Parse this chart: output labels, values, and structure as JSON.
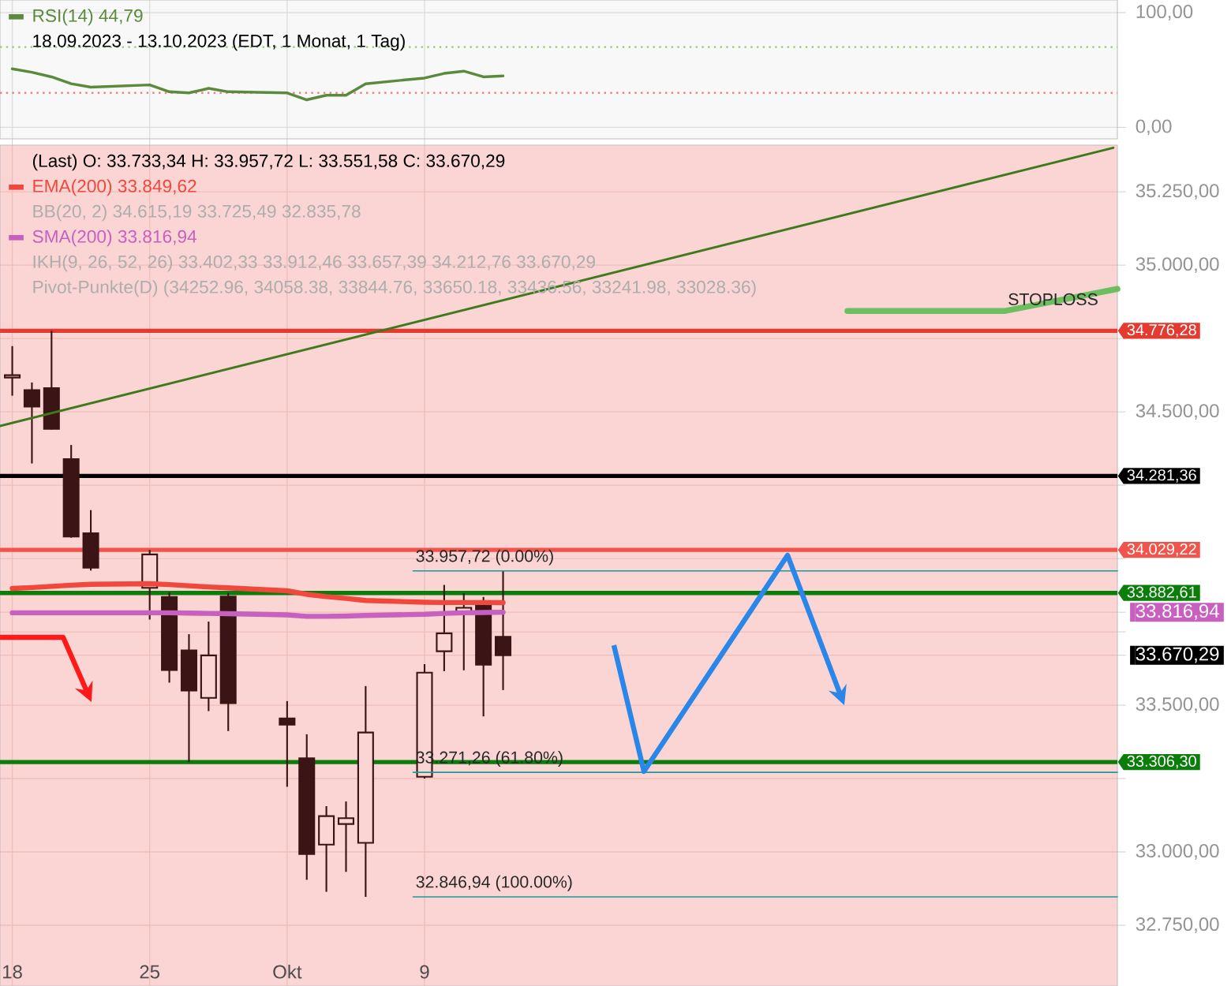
{
  "chart_data": [
    {
      "type": "line",
      "x": [
        "2023-09-18",
        "2023-09-19",
        "2023-09-20",
        "2023-09-21",
        "2023-09-22",
        "2023-09-25",
        "2023-09-26",
        "2023-09-27",
        "2023-09-28",
        "2023-09-29",
        "2023-10-02",
        "2023-10-03",
        "2023-10-04",
        "2023-10-05",
        "2023-10-06",
        "2023-10-09",
        "2023-10-10",
        "2023-10-11",
        "2023-10-12",
        "2023-10-13"
      ],
      "series": [
        {
          "name": "RSI(14) 44,79",
          "color": "#5a8a3c",
          "values": [
            51,
            48,
            44,
            38,
            35,
            37,
            31,
            30,
            34,
            31,
            30,
            24,
            28,
            28,
            38,
            43,
            47,
            49,
            44,
            44.79
          ]
        }
      ],
      "xlim": [
        "2023-09-17T09:00",
        "2023-11-13T07:00"
      ],
      "ylim": [
        -10,
        111
      ],
      "xticks": [
        {
          "value": "2023-09-18",
          "label": null
        },
        {
          "value": "2023-09-25",
          "label": null
        },
        {
          "value": "2023-10-02",
          "label": null
        },
        {
          "value": "2023-10-09",
          "label": null
        }
      ],
      "yticks": [
        {
          "value": 0,
          "label": "0,00"
        },
        {
          "value": 100,
          "label": "100,00"
        }
      ],
      "ref_lines": [
        {
          "axis": "y",
          "value": 70,
          "color": "#8fd16f",
          "line_style": "dotted"
        },
        {
          "axis": "y",
          "value": 30,
          "color": "#f08080",
          "line_style": "dotted"
        }
      ],
      "annotations": [
        "18.09.2023 - 13.10.2023 (EDT, 1 Monat, 1 Tag)"
      ],
      "grid": true,
      "legend": "top left",
      "tick_labels": "y"
    },
    {
      "type": "candlestick",
      "x": [
        "2023-09-18",
        "2023-09-19",
        "2023-09-20",
        "2023-09-21",
        "2023-09-22",
        "2023-09-25",
        "2023-09-26",
        "2023-09-27",
        "2023-09-28",
        "2023-09-29",
        "2023-10-02",
        "2023-10-03",
        "2023-10-04",
        "2023-10-05",
        "2023-10-06",
        "2023-10-09",
        "2023-10-10",
        "2023-10-11",
        "2023-10-12",
        "2023-10-13"
      ],
      "ohlc": [
        [
          34617,
          34724,
          34555,
          34625
        ],
        [
          34574,
          34600,
          34324,
          34518
        ],
        [
          34581,
          34776,
          34440,
          34442
        ],
        [
          34339,
          34387,
          34071,
          34075
        ],
        [
          34086,
          34165,
          33959,
          33969
        ],
        [
          33900,
          34029,
          33792,
          34014
        ],
        [
          33869,
          33885,
          33577,
          33620
        ],
        [
          33687,
          33742,
          33306,
          33550
        ],
        [
          33525,
          33785,
          33480,
          33670
        ],
        [
          33870,
          33883,
          33412,
          33507
        ],
        [
          33455,
          33514,
          33222,
          33434
        ],
        [
          33319,
          33401,
          32905,
          32993
        ],
        [
          33025,
          33156,
          32864,
          33122
        ],
        [
          33095,
          33172,
          32932,
          33115
        ],
        [
          33031,
          33565,
          32847,
          33407
        ],
        [
          33256,
          33640,
          33250,
          33611
        ],
        [
          33684,
          33910,
          33616,
          33745
        ],
        [
          33818,
          33882,
          33619,
          33832
        ],
        [
          33847,
          33869,
          33462,
          33638
        ],
        [
          33733.34,
          33957.72,
          33551.58,
          33670.29
        ]
      ],
      "series": [
        {
          "name": "EMA(200) 33.849,62",
          "type": "line",
          "color": "#f0483c",
          "values": [
            33898,
            33901,
            33905,
            33909,
            33912,
            33914,
            33911,
            33907,
            33903,
            33900,
            33890,
            33878,
            33870,
            33864,
            33857,
            33851,
            33850,
            33850,
            33850,
            33849.62
          ]
        },
        {
          "name": "SMA(200) 33.816,94",
          "type": "line",
          "color": "#c860c0",
          "values": [
            33815,
            33815,
            33815,
            33815,
            33815,
            33815,
            33815,
            33814,
            33813,
            33812,
            33808,
            33803,
            33803,
            33804,
            33806,
            33810,
            33813,
            33815,
            33816,
            33816.94
          ]
        },
        {
          "type": "line",
          "color": "#3d7a1e",
          "x": [
            "2023-09-17T09:00",
            "2023-11-13T02:00"
          ],
          "values": [
            34452,
            35400
          ]
        },
        {
          "type": "line",
          "color": "#6cbf60",
          "x": [
            "2023-10-30T13:00",
            "2023-11-07T14:00",
            "2023-11-13T07:00"
          ],
          "values": [
            34844,
            34844,
            34919
          ]
        },
        {
          "type": "line",
          "color": "#1a9a9a",
          "x": [
            "2023-10-08T10:00",
            "2023-11-13T07:00"
          ],
          "values": [
            33957.72,
            33957.72
          ]
        },
        {
          "type": "line",
          "color": "#1a9a9a",
          "x": [
            "2023-10-08T10:00",
            "2023-11-13T07:00"
          ],
          "values": [
            33271.26,
            33271.26
          ]
        },
        {
          "type": "line",
          "color": "#1a9a9a",
          "x": [
            "2023-10-08T10:00",
            "2023-11-13T07:00"
          ],
          "values": [
            32846.94,
            32846.94
          ]
        }
      ],
      "xlim": [
        "2023-09-17T09:00",
        "2023-11-13T07:00"
      ],
      "ylim": [
        32543,
        35409
      ],
      "xticks": [
        {
          "value": "2023-09-18",
          "label": "18"
        },
        {
          "value": "2023-09-25",
          "label": "25"
        },
        {
          "value": "2023-10-02",
          "label": "Okt"
        },
        {
          "value": "2023-10-09",
          "label": "9"
        }
      ],
      "yticks": [
        {
          "value": 32750,
          "label": "32.750,00"
        },
        {
          "value": 33000,
          "label": "33.000,00"
        },
        {
          "value": 33250,
          "label": null
        },
        {
          "value": 33500,
          "label": "33.500,00"
        },
        {
          "value": 33670.29,
          "label": "33.670,29"
        },
        {
          "value": 33750,
          "label": null
        },
        {
          "value": 33816.94,
          "label": "33.816,94"
        },
        {
          "value": 34000,
          "label": null
        },
        {
          "value": 34250,
          "label": null
        },
        {
          "value": 34500,
          "label": "34.500,00"
        },
        {
          "value": 34750,
          "label": null
        },
        {
          "value": 35000,
          "label": "35.000,00"
        },
        {
          "value": 35250,
          "label": "35.250,00"
        }
      ],
      "ref_lines": [
        {
          "axis": "y",
          "value": 34776.28,
          "label": "34.776,28",
          "color": "#e53a2f"
        },
        {
          "axis": "y",
          "value": 34281.36,
          "label": "34.281,36",
          "color": "#000000"
        },
        {
          "axis": "y",
          "value": 34029.22,
          "label": "34.029,22",
          "color": "#f0544a"
        },
        {
          "axis": "y",
          "value": 33882.61,
          "label": "33.882,61",
          "color": "#0b7d0b"
        },
        {
          "axis": "y",
          "value": 33306.3,
          "label": "33.306,30",
          "color": "#0b7d0b"
        }
      ],
      "annotations": [
        "(Last) O: 33.733,34 H: 33.957,72 L: 33.551,58 C: 33.670,29",
        "BB(20, 2) 34.615,19 33.725,49 32.835,78",
        "IKH(9, 26, 52, 26) 33.402,33 33.912,46 33.657,39 34.212,76 33.670,29",
        "Pivot-Punkte(D) (34252.96, 34058.38, 33844.76, 33650.18, 33436.56, 33241.98, 33028.36)",
        {
          "text": "33.957,72 (0.00%)",
          "x": "2023-10-08T10:00",
          "y": 33957.72
        },
        {
          "text": "33.271,26 (61.80%)",
          "x": "2023-10-08T10:00",
          "y": 33271.26
        },
        {
          "text": "32.846,94 (100.00%)",
          "x": "2023-10-08T10:00",
          "y": 32846.94
        },
        {
          "text": "STOPLOSS",
          "x": "2023-11-07T14:00",
          "y": 34844
        }
      ],
      "grid": true,
      "legend": "top left"
    }
  ]
}
